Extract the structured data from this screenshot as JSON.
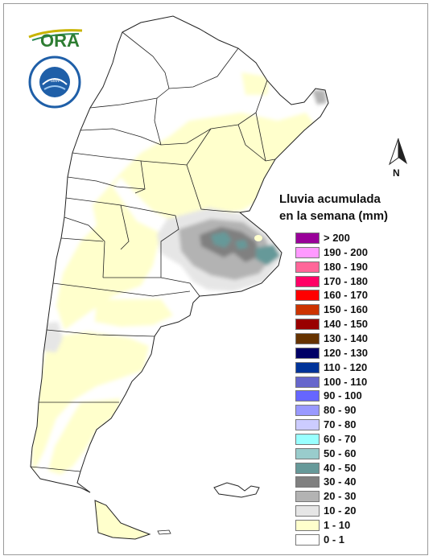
{
  "logo": {
    "text": "ORA"
  },
  "seal": {
    "text": "SERVICIO METEOROLOGICO NACIONAL · ARGENTINA"
  },
  "north_arrow": {
    "label": "N"
  },
  "legend": {
    "title_line1": "Lluvia acumulada",
    "title_line2": "en la semana (mm)",
    "items": [
      {
        "label": "> 200",
        "color": "#990099"
      },
      {
        "label": "190 - 200",
        "color": "#ff99ff"
      },
      {
        "label": "180 - 190",
        "color": "#ff6699"
      },
      {
        "label": "170 - 180",
        "color": "#ff0066"
      },
      {
        "label": "160 - 170",
        "color": "#ff0000"
      },
      {
        "label": "150 - 160",
        "color": "#cc3300"
      },
      {
        "label": "140 - 150",
        "color": "#990000"
      },
      {
        "label": "130 - 140",
        "color": "#663300"
      },
      {
        "label": "120 - 130",
        "color": "#000066"
      },
      {
        "label": "110 - 120",
        "color": "#003399"
      },
      {
        "label": "100 - 110",
        "color": "#6666cc"
      },
      {
        "label": "90 - 100",
        "color": "#6666ff"
      },
      {
        "label": "80 - 90",
        "color": "#9999ff"
      },
      {
        "label": "70 - 80",
        "color": "#ccccff"
      },
      {
        "label": "60 - 70",
        "color": "#99ffff"
      },
      {
        "label": "50 - 60",
        "color": "#99cccc"
      },
      {
        "label": "40 - 50",
        "color": "#669999"
      },
      {
        "label": "30 - 40",
        "color": "#808080"
      },
      {
        "label": "20 - 30",
        "color": "#b3b3b3"
      },
      {
        "label": "10 - 20",
        "color": "#e6e6e6"
      },
      {
        "label": "1 - 10",
        "color": "#ffffcc"
      },
      {
        "label": "0 - 1",
        "color": "#ffffff"
      }
    ]
  },
  "map": {
    "rain_colors": {
      "c0_1": "#ffffff",
      "c1_10": "#ffffcc",
      "c10_20": "#e6e6e6",
      "c20_30": "#b3b3b3",
      "c30_40": "#808080",
      "c40_50": "#669999",
      "c50_60": "#99cccc"
    }
  }
}
